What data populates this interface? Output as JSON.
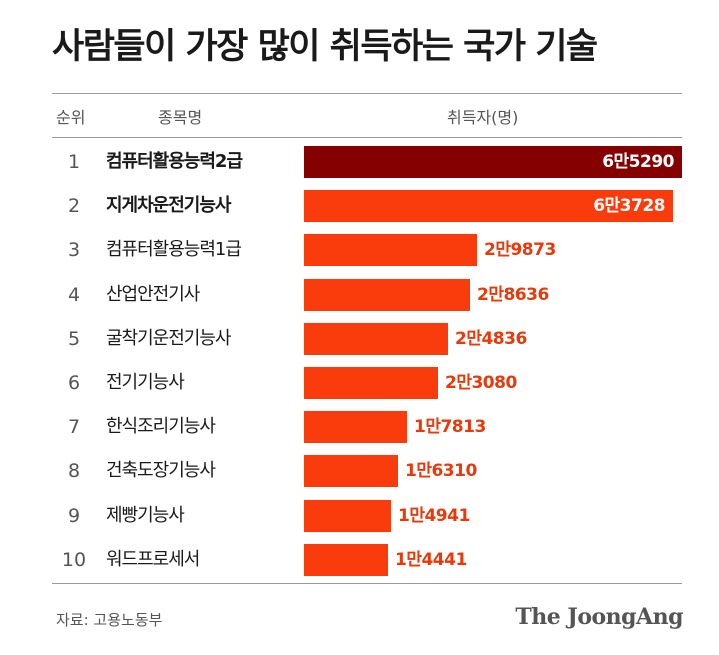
{
  "title": "사람들이 가장 많이 취득하는 국가 기술",
  "header": {
    "rank": "순위",
    "name": "종목명",
    "count": "취득자(명)"
  },
  "source": "자료: 고용노동부",
  "brand": "The JoongAng",
  "colors": {
    "top_bar": "#850000",
    "bar": "#fa3b0c",
    "value_text": "#e8390b"
  },
  "chart_data": {
    "type": "bar",
    "orientation": "horizontal",
    "title": "사람들이 가장 많이 취득하는 국가 기술",
    "xlabel": "취득자(명)",
    "ylabel": "종목명",
    "ranks": [
      "1",
      "2",
      "3",
      "4",
      "5",
      "6",
      "7",
      "8",
      "9",
      "10"
    ],
    "categories": [
      "컴퓨터활용능력2급",
      "지게차운전기능사",
      "컴퓨터활용능력1급",
      "산업안전기사",
      "굴착기운전기능사",
      "전기기능사",
      "한식조리기능사",
      "건축도장기능사",
      "제빵기능사",
      "워드프로세서"
    ],
    "values": [
      65290,
      63728,
      29873,
      28636,
      24836,
      23080,
      17813,
      16310,
      14941,
      14441
    ],
    "value_labels": [
      "6만5290",
      "6만3728",
      "2만9873",
      "2만8636",
      "2만4836",
      "2만3080",
      "1만7813",
      "1만6310",
      "1만4941",
      "1만4441"
    ],
    "xlim": [
      0,
      65290
    ]
  }
}
